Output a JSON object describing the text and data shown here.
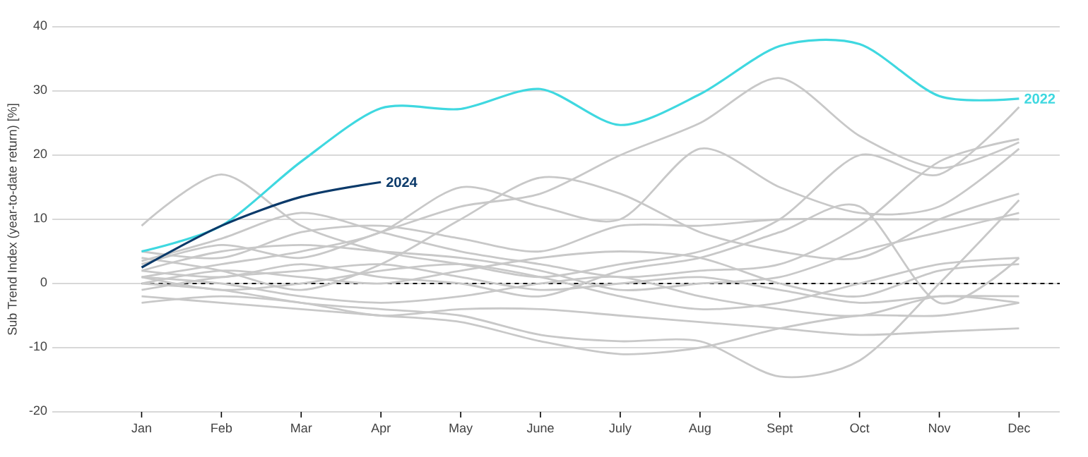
{
  "chart_data": {
    "type": "line",
    "ylabel": "Sub Trend Index  (year-to-date return) [%]",
    "categories": [
      "Jan",
      "Feb",
      "Mar",
      "Apr",
      "May",
      "June",
      "July",
      "Aug",
      "Sept",
      "Oct",
      "Nov",
      "Dec"
    ],
    "ylim": [
      -20,
      40
    ],
    "yticks": [
      -20,
      -10,
      0,
      10,
      20,
      30,
      40
    ],
    "grid": "y",
    "ref_lines": [
      {
        "axis": "y",
        "value": 0,
        "color": "#000000",
        "line_style": "dashed"
      }
    ],
    "series": [
      {
        "color": "#c8c8c8",
        "values": [
          3,
          6,
          4,
          8,
          12,
          14,
          20,
          25,
          32,
          23,
          18,
          22
        ]
      },
      {
        "color": "#c8c8c8",
        "values": [
          9,
          17,
          9,
          5,
          3,
          1,
          3,
          5,
          10,
          20,
          17,
          27.5
        ]
      },
      {
        "color": "#c8c8c8",
        "values": [
          1,
          3,
          5,
          8,
          15,
          12,
          10,
          21,
          15,
          11,
          12,
          21
        ]
      },
      {
        "color": "#c8c8c8",
        "values": [
          4,
          2,
          -1,
          3,
          10,
          16.5,
          14,
          8,
          5,
          4,
          10,
          14
        ]
      },
      {
        "color": "#c8c8c8",
        "values": [
          0,
          -1,
          -3,
          -4,
          -5,
          -8,
          -9,
          -9,
          -14.5,
          -12,
          0,
          13
        ]
      },
      {
        "color": "#c8c8c8",
        "values": [
          -2,
          -3,
          -4,
          -5,
          -6,
          -9,
          -11,
          -10,
          -7,
          -5,
          -5,
          -3
        ]
      },
      {
        "color": "#c8c8c8",
        "values": [
          2,
          1,
          3,
          1,
          0,
          -2,
          2,
          4,
          8,
          12,
          -3,
          4
        ]
      },
      {
        "color": "#c8c8c8",
        "values": [
          -3,
          -2,
          -3,
          -5,
          -4,
          -4,
          -5,
          -6,
          -7,
          -8,
          -7.5,
          -7
        ]
      },
      {
        "color": "#c8c8c8",
        "values": [
          5,
          4,
          8,
          9,
          7,
          5,
          9,
          9,
          10,
          10,
          10,
          10
        ]
      },
      {
        "color": "#c8c8c8",
        "values": [
          2,
          5,
          6,
          5,
          4,
          2,
          -1,
          0,
          1,
          5,
          8,
          11
        ]
      },
      {
        "color": "#c8c8c8",
        "values": [
          1,
          0,
          -2,
          -3,
          -2,
          0,
          1,
          -2,
          -4,
          -5,
          -2,
          -3
        ]
      },
      {
        "color": "#c8c8c8",
        "values": [
          3.5,
          7,
          11,
          8,
          5,
          3,
          1,
          2,
          3,
          9,
          19,
          22.5
        ]
      },
      {
        "color": "#c8c8c8",
        "values": [
          0,
          2,
          1,
          0,
          2,
          4,
          5,
          4,
          0,
          -2,
          2,
          3
        ]
      },
      {
        "color": "#c8c8c8",
        "values": [
          1,
          -1,
          0,
          2,
          3,
          1,
          -2,
          -4,
          -3,
          0,
          3,
          4
        ]
      },
      {
        "color": "#c8c8c8",
        "values": [
          -1,
          1,
          2,
          3,
          1,
          -1,
          0,
          1,
          -1,
          -3,
          -2,
          -2
        ]
      },
      {
        "name": "2022",
        "color": "#3fd8e0",
        "values": [
          5,
          9,
          19,
          27.3,
          27.2,
          30.3,
          24.7,
          29.5,
          37,
          37.3,
          29.2,
          28.8
        ]
      },
      {
        "name": "2024",
        "color": "#0b3a6a",
        "values": [
          2.5,
          9,
          13.5,
          15.8,
          null,
          null,
          null,
          null,
          null,
          null,
          null,
          null
        ]
      }
    ]
  }
}
